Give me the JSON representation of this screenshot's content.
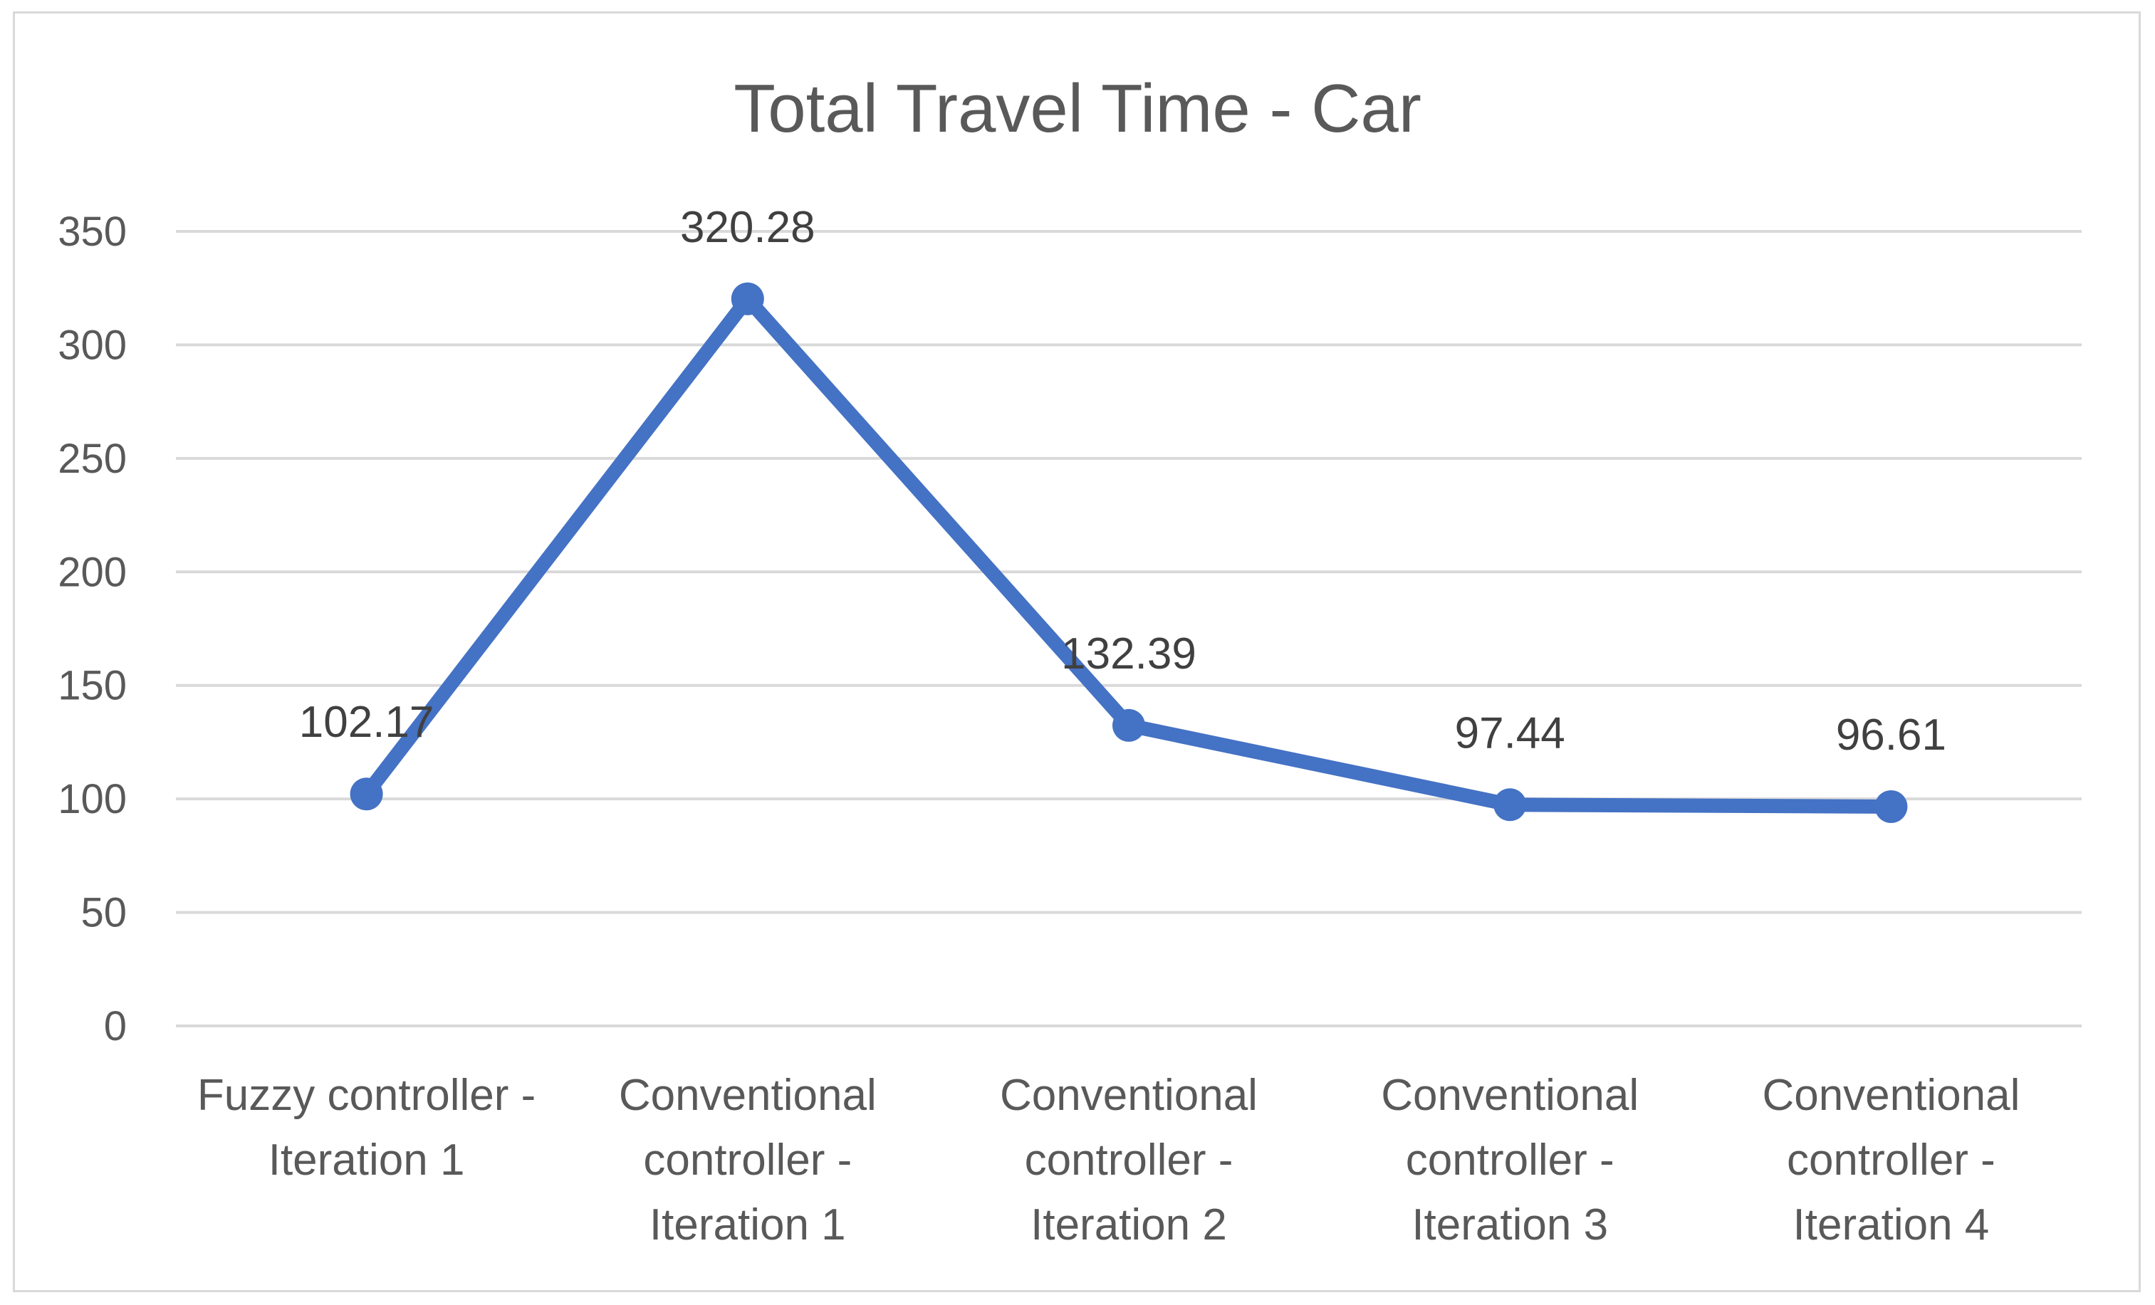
{
  "chart_data": {
    "type": "line",
    "title": "Total Travel Time - Car",
    "categories": [
      [
        "Fuzzy controller -",
        "Iteration 1"
      ],
      [
        "Conventional",
        "controller -",
        "Iteration 1"
      ],
      [
        "Conventional",
        "controller -",
        "Iteration 2"
      ],
      [
        "Conventional",
        "controller -",
        "Iteration 3"
      ],
      [
        "Conventional",
        "controller -",
        "Iteration 4"
      ]
    ],
    "series": [
      {
        "values": [
          102.17,
          320.28,
          132.39,
          97.44,
          96.61
        ],
        "color": "#4472c4"
      }
    ],
    "data_labels": [
      "102.17",
      "320.28",
      "132.39",
      "97.44",
      "96.61"
    ],
    "y_ticks": [
      "0",
      "50",
      "100",
      "150",
      "200",
      "250",
      "300",
      "350"
    ],
    "ylim": [
      0,
      350
    ],
    "grid": true,
    "legend": "none",
    "colors": {
      "line": "#4472c4",
      "grid": "#d9d9d9",
      "text": "#595959"
    }
  }
}
